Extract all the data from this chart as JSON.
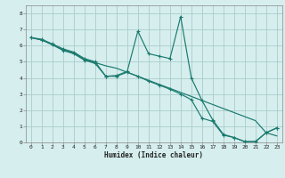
{
  "xlabel": "Humidex (Indice chaleur)",
  "background_color": "#d6eeee",
  "grid_color": "#aacccc",
  "line_color": "#1a7a6e",
  "xlim": [
    -0.5,
    23.5
  ],
  "ylim": [
    0,
    8.5
  ],
  "xticks": [
    0,
    1,
    2,
    3,
    4,
    5,
    6,
    7,
    8,
    9,
    10,
    11,
    12,
    13,
    14,
    15,
    16,
    17,
    18,
    19,
    20,
    21,
    22,
    23
  ],
  "yticks": [
    0,
    1,
    2,
    3,
    4,
    5,
    6,
    7,
    8
  ],
  "series1_x": [
    0,
    1,
    2,
    3,
    4,
    5,
    6,
    7,
    8,
    9,
    10,
    11,
    12,
    13,
    14,
    15,
    16,
    17,
    18,
    19,
    20,
    21,
    22,
    23
  ],
  "series1_y": [
    6.5,
    6.4,
    6.1,
    5.8,
    5.6,
    5.2,
    5.0,
    4.1,
    4.15,
    4.4,
    6.9,
    5.5,
    5.35,
    5.2,
    7.8,
    4.0,
    2.6,
    1.4,
    0.5,
    0.3,
    0.05,
    0.05,
    0.6,
    0.9
  ],
  "series2_x": [
    0,
    1,
    2,
    3,
    4,
    5,
    6,
    7,
    8,
    9,
    10,
    11,
    12,
    13,
    14,
    15,
    16,
    17,
    18,
    19,
    20,
    21,
    22,
    23
  ],
  "series2_y": [
    6.5,
    6.35,
    6.1,
    5.75,
    5.55,
    5.15,
    4.95,
    4.75,
    4.6,
    4.35,
    4.1,
    3.85,
    3.6,
    3.35,
    3.1,
    2.85,
    2.6,
    2.35,
    2.1,
    1.85,
    1.6,
    1.35,
    0.6,
    0.4
  ],
  "series3_x": [
    0,
    1,
    2,
    3,
    4,
    5,
    6,
    7,
    8,
    9,
    10,
    11,
    12,
    13,
    14,
    15,
    16,
    17,
    18,
    19,
    20,
    21,
    22,
    23
  ],
  "series3_y": [
    6.5,
    6.35,
    6.05,
    5.7,
    5.5,
    5.1,
    4.9,
    4.1,
    4.1,
    4.35,
    4.1,
    3.8,
    3.55,
    3.3,
    3.0,
    2.65,
    1.5,
    1.3,
    0.45,
    0.3,
    0.05,
    0.05,
    0.6,
    0.9
  ]
}
